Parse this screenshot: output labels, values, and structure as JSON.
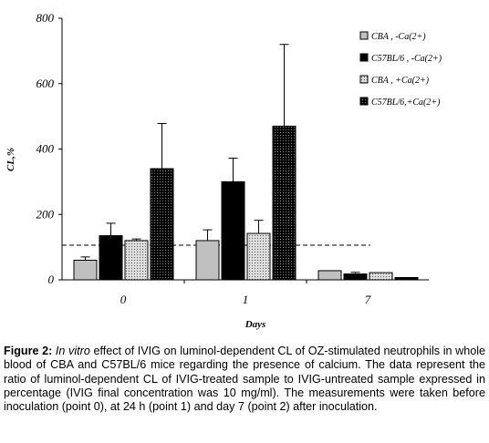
{
  "chart_data": {
    "type": "bar",
    "xlabel": "Days",
    "ylabel": "CL,%",
    "ylim": [
      0,
      800
    ],
    "yticks": [
      "0",
      "200",
      "400",
      "600",
      "800"
    ],
    "categories": [
      "0",
      "1",
      "7"
    ],
    "legend_position": "top-right",
    "reference_line": 106,
    "series": [
      {
        "name": "CBA , -Ca(2+)",
        "color": "#c0c0c0",
        "pattern": "solid",
        "values": [
          60,
          120,
          28
        ],
        "errors": [
          10,
          33,
          0
        ]
      },
      {
        "name": "C57BL/6 , -Ca(2+)",
        "color": "#000000",
        "pattern": "solid",
        "values": [
          135,
          300,
          18
        ],
        "errors": [
          38,
          72,
          5
        ]
      },
      {
        "name": "CBA , +Ca(2+)",
        "color": "#c8c8c8",
        "pattern": "dots",
        "values": [
          120,
          142,
          22
        ],
        "errors": [
          5,
          40,
          0
        ]
      },
      {
        "name": "C57BL/6,+Ca(2+)",
        "color": "#000000",
        "pattern": "dots-dark",
        "values": [
          340,
          470,
          7
        ],
        "errors": [
          138,
          250,
          0
        ]
      }
    ]
  },
  "caption": {
    "label": "Figure 2:",
    "italic": "In vitro",
    "text": "effect of IVIG on luminol-dependent CL of OZ-stimulated neutrophils in whole blood of CBA and C57BL/6 mice regarding the presence of calcium. The data represent the ratio of luminol-dependent CL of IVIG-treated sample to IVIG-untreated sample expressed in percentage (IVIG final concentration was 10 mg/ml). The measurements were taken before inoculation (point 0), at 24 h (point 1) and day 7 (point 2) after inoculation."
  }
}
